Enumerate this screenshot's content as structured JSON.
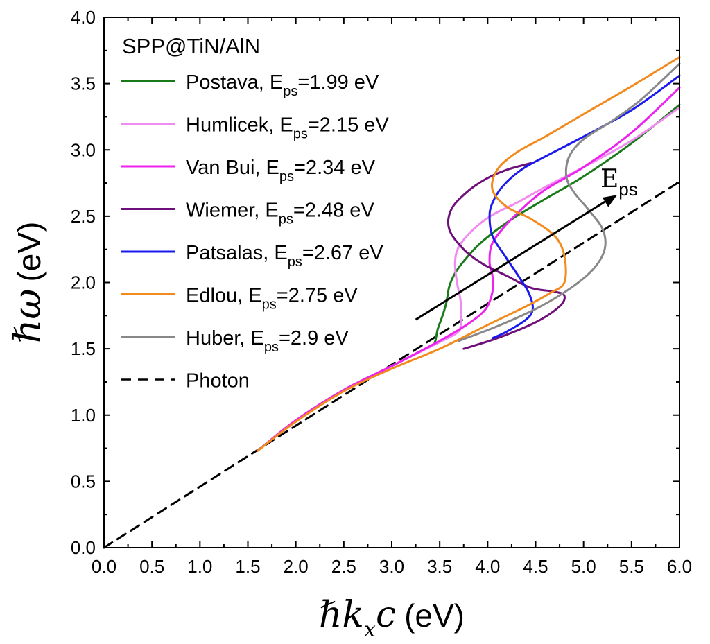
{
  "chart_data": {
    "type": "line",
    "title": "",
    "xlabel_symbol": "ℏkxc",
    "xlabel_parts": [
      "ℏ",
      "k",
      "x",
      "c"
    ],
    "xlabel_unit": "(eV)",
    "ylabel_symbol": "ℏω",
    "ylabel_unit": "(eV)",
    "xlim": [
      0,
      6
    ],
    "ylim": [
      0,
      4
    ],
    "xticks": [
      "0.0",
      "0.5",
      "1.0",
      "1.5",
      "2.0",
      "2.5",
      "3.0",
      "3.5",
      "4.0",
      "4.5",
      "5.0",
      "5.5",
      "6.0"
    ],
    "yticks": [
      "0.0",
      "0.5",
      "1.0",
      "1.5",
      "2.0",
      "2.5",
      "3.0",
      "3.5",
      "4.0"
    ],
    "legend": {
      "title": "SPP@TiN/AlN",
      "position": "top-left"
    },
    "annotation": {
      "text": "E",
      "subscript": "ps",
      "arrow_from": [
        3.25,
        1.72
      ],
      "arrow_to": [
        5.35,
        2.66
      ]
    },
    "series": [
      {
        "name": "Postava",
        "label_prefix": "Postava, E",
        "label_sub": "ps",
        "label_suffix": "=1.99 eV",
        "color": "#1a7a1a",
        "dash": false,
        "points": [
          [
            1.6,
            0.73
          ],
          [
            2.0,
            0.96
          ],
          [
            2.5,
            1.19
          ],
          [
            3.0,
            1.37
          ],
          [
            3.4,
            1.52
          ],
          [
            3.45,
            1.55
          ],
          [
            3.48,
            1.65
          ],
          [
            3.53,
            1.75
          ],
          [
            3.57,
            1.85
          ],
          [
            3.6,
            1.97
          ],
          [
            3.66,
            2.07
          ],
          [
            3.75,
            2.16
          ],
          [
            3.9,
            2.28
          ],
          [
            4.1,
            2.4
          ],
          [
            4.3,
            2.5
          ],
          [
            4.6,
            2.63
          ],
          [
            5.0,
            2.8
          ],
          [
            5.5,
            3.05
          ],
          [
            6.0,
            3.34
          ]
        ]
      },
      {
        "name": "Humlicek",
        "label_prefix": "Humlicek, E",
        "label_sub": "ps",
        "label_suffix": "=2.15 eV",
        "color": "#f08cf0",
        "dash": false,
        "points": [
          [
            1.6,
            0.73
          ],
          [
            2.0,
            0.96
          ],
          [
            2.5,
            1.19
          ],
          [
            3.0,
            1.37
          ],
          [
            3.5,
            1.55
          ],
          [
            3.68,
            1.62
          ],
          [
            3.72,
            1.68
          ],
          [
            3.72,
            1.85
          ],
          [
            3.68,
            2.0
          ],
          [
            3.66,
            2.15
          ],
          [
            3.7,
            2.27
          ],
          [
            3.85,
            2.4
          ],
          [
            4.05,
            2.51
          ],
          [
            4.3,
            2.6
          ],
          [
            4.6,
            2.72
          ],
          [
            5.0,
            2.87
          ],
          [
            5.5,
            3.07
          ],
          [
            6.0,
            3.32
          ]
        ]
      },
      {
        "name": "Van Bui",
        "label_prefix": "Van Bui, E",
        "label_sub": "ps",
        "label_suffix": "=2.34 eV",
        "color": "#ee22ee",
        "dash": false,
        "points": [
          [
            1.6,
            0.73
          ],
          [
            2.0,
            0.96
          ],
          [
            2.5,
            1.19
          ],
          [
            3.0,
            1.37
          ],
          [
            3.5,
            1.56
          ],
          [
            3.8,
            1.69
          ],
          [
            3.98,
            1.8
          ],
          [
            4.05,
            1.93
          ],
          [
            4.05,
            2.05
          ],
          [
            4.02,
            2.15
          ],
          [
            4.04,
            2.28
          ],
          [
            4.15,
            2.4
          ],
          [
            4.35,
            2.55
          ],
          [
            4.6,
            2.7
          ],
          [
            5.0,
            2.87
          ],
          [
            5.5,
            3.13
          ],
          [
            6.0,
            3.47
          ]
        ]
      },
      {
        "name": "Wiemer",
        "label_prefix": "Wiemer, E",
        "label_sub": "ps",
        "label_suffix": "=2.48 eV",
        "color": "#6e0f7a",
        "dash": false,
        "points": [
          [
            3.75,
            1.5
          ],
          [
            4.1,
            1.58
          ],
          [
            4.5,
            1.7
          ],
          [
            4.75,
            1.82
          ],
          [
            4.8,
            1.9
          ],
          [
            4.7,
            1.93
          ],
          [
            4.45,
            1.96
          ],
          [
            4.2,
            2.05
          ],
          [
            3.95,
            2.14
          ],
          [
            3.75,
            2.25
          ],
          [
            3.6,
            2.4
          ],
          [
            3.62,
            2.55
          ],
          [
            3.78,
            2.68
          ],
          [
            3.98,
            2.78
          ],
          [
            4.2,
            2.85
          ],
          [
            4.45,
            2.9
          ]
        ]
      },
      {
        "name": "Patsalas",
        "label_prefix": "Patsalas, E",
        "label_sub": "ps",
        "label_suffix": "=2.67 eV",
        "color": "#1a1aee",
        "dash": false,
        "points": [
          [
            4.05,
            1.58
          ],
          [
            4.2,
            1.63
          ],
          [
            4.4,
            1.72
          ],
          [
            4.47,
            1.8
          ],
          [
            4.43,
            1.92
          ],
          [
            4.32,
            2.05
          ],
          [
            4.18,
            2.2
          ],
          [
            4.05,
            2.35
          ],
          [
            4.02,
            2.5
          ],
          [
            4.05,
            2.6
          ],
          [
            4.15,
            2.72
          ],
          [
            4.35,
            2.85
          ],
          [
            4.6,
            2.95
          ],
          [
            5.0,
            3.1
          ],
          [
            5.5,
            3.3
          ],
          [
            6.0,
            3.56
          ]
        ]
      },
      {
        "name": "Edlou",
        "label_prefix": "Edlou, E",
        "label_sub": "ps",
        "label_suffix": "=2.75 eV",
        "color": "#f28a1e",
        "dash": false,
        "points": [
          [
            1.6,
            0.73
          ],
          [
            2.0,
            0.95
          ],
          [
            2.5,
            1.18
          ],
          [
            3.0,
            1.35
          ],
          [
            3.5,
            1.5
          ],
          [
            4.0,
            1.68
          ],
          [
            4.4,
            1.82
          ],
          [
            4.65,
            1.92
          ],
          [
            4.8,
            2.0
          ],
          [
            4.8,
            2.2
          ],
          [
            4.7,
            2.35
          ],
          [
            4.45,
            2.48
          ],
          [
            4.2,
            2.57
          ],
          [
            4.05,
            2.7
          ],
          [
            4.1,
            2.85
          ],
          [
            4.3,
            2.98
          ],
          [
            4.6,
            3.1
          ],
          [
            5.0,
            3.27
          ],
          [
            5.5,
            3.48
          ],
          [
            6.0,
            3.7
          ]
        ]
      },
      {
        "name": "Huber",
        "label_prefix": "Huber, E",
        "label_sub": "ps",
        "label_suffix": "=2.9 eV",
        "color": "#888888",
        "dash": false,
        "points": [
          [
            3.7,
            1.56
          ],
          [
            4.1,
            1.67
          ],
          [
            4.5,
            1.8
          ],
          [
            4.85,
            1.95
          ],
          [
            5.1,
            2.1
          ],
          [
            5.22,
            2.25
          ],
          [
            5.2,
            2.4
          ],
          [
            5.05,
            2.55
          ],
          [
            4.9,
            2.68
          ],
          [
            4.82,
            2.8
          ],
          [
            4.85,
            2.95
          ],
          [
            5.0,
            3.08
          ],
          [
            5.3,
            3.22
          ],
          [
            5.6,
            3.38
          ],
          [
            6.0,
            3.65
          ]
        ]
      },
      {
        "name": "Photon",
        "label_prefix": "Photon",
        "label_sub": "",
        "label_suffix": "",
        "color": "#000000",
        "dash": true,
        "points": [
          [
            0.0,
            0.0
          ],
          [
            6.0,
            2.76
          ]
        ]
      }
    ]
  }
}
